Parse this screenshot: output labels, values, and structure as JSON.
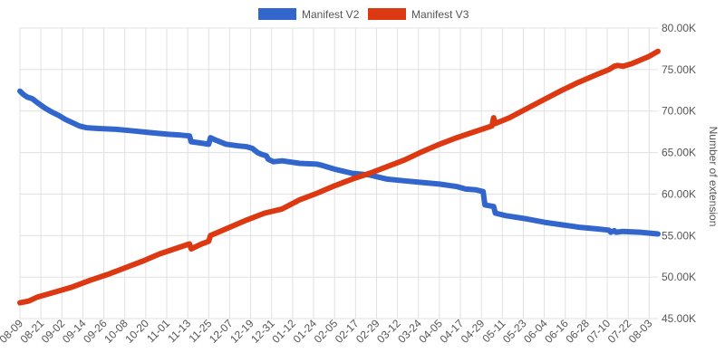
{
  "chart_data": {
    "type": "line",
    "title": "",
    "xlabel": "",
    "ylabel": "Number of extension",
    "legend_position": "top-center",
    "grid": true,
    "ylim": [
      45000,
      80000
    ],
    "y_ticks": [
      45000,
      50000,
      55000,
      60000,
      65000,
      70000,
      75000,
      80000
    ],
    "y_tick_labels": [
      "45.00K",
      "50.00K",
      "55.00K",
      "60.00K",
      "65.00K",
      "70.00K",
      "75.00K",
      "80.00K"
    ],
    "x_tick_labels": [
      "08-09",
      "08-21",
      "09-02",
      "09-14",
      "09-26",
      "10-08",
      "10-20",
      "11-01",
      "11-13",
      "11-25",
      "12-07",
      "12-19",
      "12-31",
      "01-12",
      "01-24",
      "02-05",
      "02-17",
      "02-29",
      "03-12",
      "03-24",
      "04-05",
      "04-17",
      "04-29",
      "05-11",
      "05-23",
      "06-04",
      "06-16",
      "06-28",
      "07-10",
      "07-22",
      "08-03"
    ],
    "x_tick_index": [
      0,
      12,
      24,
      36,
      48,
      60,
      72,
      84,
      96,
      108,
      120,
      132,
      144,
      156,
      168,
      180,
      192,
      204,
      216,
      228,
      240,
      252,
      264,
      276,
      288,
      300,
      312,
      324,
      336,
      348,
      360
    ],
    "x_last_index": 365,
    "series": [
      {
        "name": "Manifest V2",
        "color": "#3366cc",
        "x": [
          0,
          2,
          4,
          7,
          10,
          14,
          18,
          22,
          26,
          30,
          34,
          38,
          45,
          55,
          65,
          75,
          85,
          92,
          97,
          98,
          102,
          108,
          109,
          112,
          118,
          125,
          130,
          133,
          136,
          138,
          141,
          142,
          145,
          150,
          160,
          170,
          172,
          180,
          190,
          200,
          210,
          220,
          230,
          240,
          250,
          255,
          261,
          265,
          266,
          271,
          272,
          278,
          290,
          300,
          310,
          320,
          330,
          337,
          338,
          340,
          341,
          345,
          355,
          365
        ],
        "y": [
          72400,
          72000,
          71700,
          71500,
          71000,
          70400,
          69900,
          69500,
          69000,
          68600,
          68200,
          68000,
          67900,
          67800,
          67600,
          67400,
          67200,
          67100,
          67000,
          66300,
          66200,
          66000,
          66800,
          66500,
          66000,
          65800,
          65700,
          65500,
          65000,
          64800,
          64600,
          64200,
          63900,
          64000,
          63700,
          63600,
          63500,
          63000,
          62500,
          62300,
          61800,
          61600,
          61400,
          61200,
          60900,
          60600,
          60500,
          60300,
          58700,
          58500,
          57700,
          57400,
          57000,
          56600,
          56300,
          56000,
          55800,
          55650,
          55400,
          55600,
          55400,
          55500,
          55400,
          55200
        ]
      },
      {
        "name": "Manifest V3",
        "color": "#dc3912",
        "x": [
          0,
          5,
          10,
          20,
          30,
          40,
          50,
          60,
          70,
          80,
          90,
          97,
          98,
          104,
          108,
          109,
          120,
          130,
          140,
          150,
          160,
          170,
          180,
          190,
          200,
          210,
          220,
          230,
          240,
          250,
          260,
          270,
          271,
          272,
          280,
          290,
          300,
          310,
          320,
          330,
          337,
          340,
          342,
          345,
          350,
          360,
          365
        ],
        "y": [
          46900,
          47100,
          47600,
          48200,
          48800,
          49600,
          50300,
          51100,
          51900,
          52800,
          53500,
          54000,
          53400,
          54000,
          54300,
          55000,
          56000,
          56900,
          57700,
          58200,
          59300,
          60100,
          61000,
          61800,
          62500,
          63300,
          64100,
          65100,
          66000,
          66800,
          67500,
          68200,
          69200,
          68500,
          69200,
          70300,
          71400,
          72500,
          73500,
          74400,
          75000,
          75400,
          75500,
          75400,
          75700,
          76600,
          77200
        ]
      }
    ]
  }
}
